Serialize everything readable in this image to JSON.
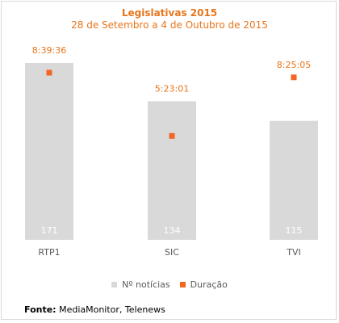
{
  "chart_data": {
    "type": "bar",
    "title": "Legislativas 2015",
    "subtitle": "28 de Setembro a 4 de Outubro de 2015",
    "categories": [
      "RTP1",
      "SIC",
      "TVI"
    ],
    "series": [
      {
        "name": "Nº notícias",
        "kind": "bar",
        "values": [
          171,
          134,
          115
        ],
        "color": "#d9d9d9",
        "label_color": "#ffffff"
      },
      {
        "name": "Duração",
        "kind": "marker",
        "values": [
          "8:39:36",
          "5:23:01",
          "8:25:05"
        ],
        "seconds": [
          31176,
          19381,
          30305
        ],
        "color": "#f26522",
        "label_color": "#e8751a"
      }
    ],
    "ylim_count": [
      0,
      180
    ],
    "ylim_duration_seconds": [
      0,
      40000
    ],
    "grid": false,
    "legend_position": "bottom"
  },
  "source": {
    "label": "Fonte:",
    "text": "MediaMonitor, Telenews"
  }
}
